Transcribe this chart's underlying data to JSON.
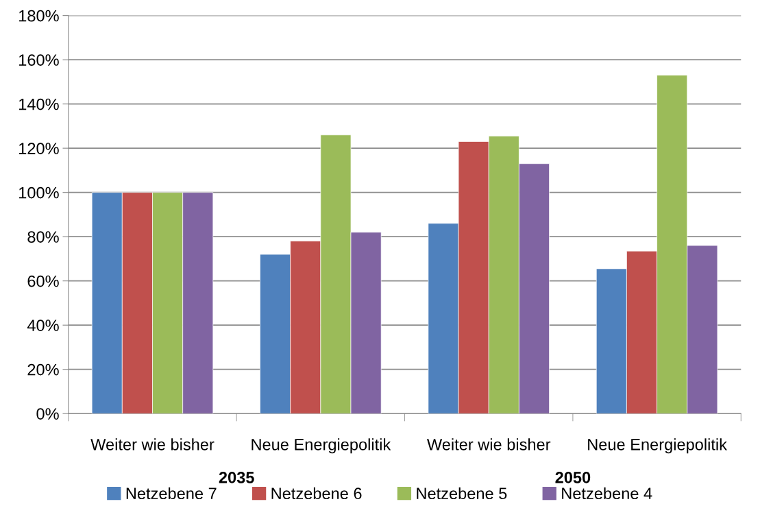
{
  "chart_data": {
    "type": "bar",
    "categories": [
      "Weiter wie bisher",
      "Neue Energiepolitik",
      "Weiter wie bisher",
      "Neue Energiepolitik"
    ],
    "series": [
      {
        "name": "Netzebene 7",
        "color": "#4f81bd",
        "values": [
          100,
          72,
          86,
          65.5
        ]
      },
      {
        "name": "Netzebene 6",
        "color": "#c0504d",
        "values": [
          100,
          78,
          123,
          73.5
        ]
      },
      {
        "name": "Netzebene 5",
        "color": "#9bbb59",
        "values": [
          100,
          126,
          125.5,
          153
        ]
      },
      {
        "name": "Netzebene 4",
        "color": "#8064a2",
        "values": [
          100,
          82,
          113,
          76
        ]
      }
    ],
    "ylim": [
      0,
      180
    ],
    "yticks": [
      {
        "value": 0,
        "label": "0%"
      },
      {
        "value": 20,
        "label": "20%"
      },
      {
        "value": 40,
        "label": "40%"
      },
      {
        "value": 60,
        "label": "60%"
      },
      {
        "value": 80,
        "label": "80%"
      },
      {
        "value": 100,
        "label": "100%"
      },
      {
        "value": 120,
        "label": "120%"
      },
      {
        "value": 140,
        "label": "140%"
      },
      {
        "value": 160,
        "label": "160%"
      },
      {
        "value": 180,
        "label": "180%"
      }
    ],
    "annotations": [
      "2035",
      "2050"
    ],
    "grid": "y",
    "legend": "bottom"
  }
}
